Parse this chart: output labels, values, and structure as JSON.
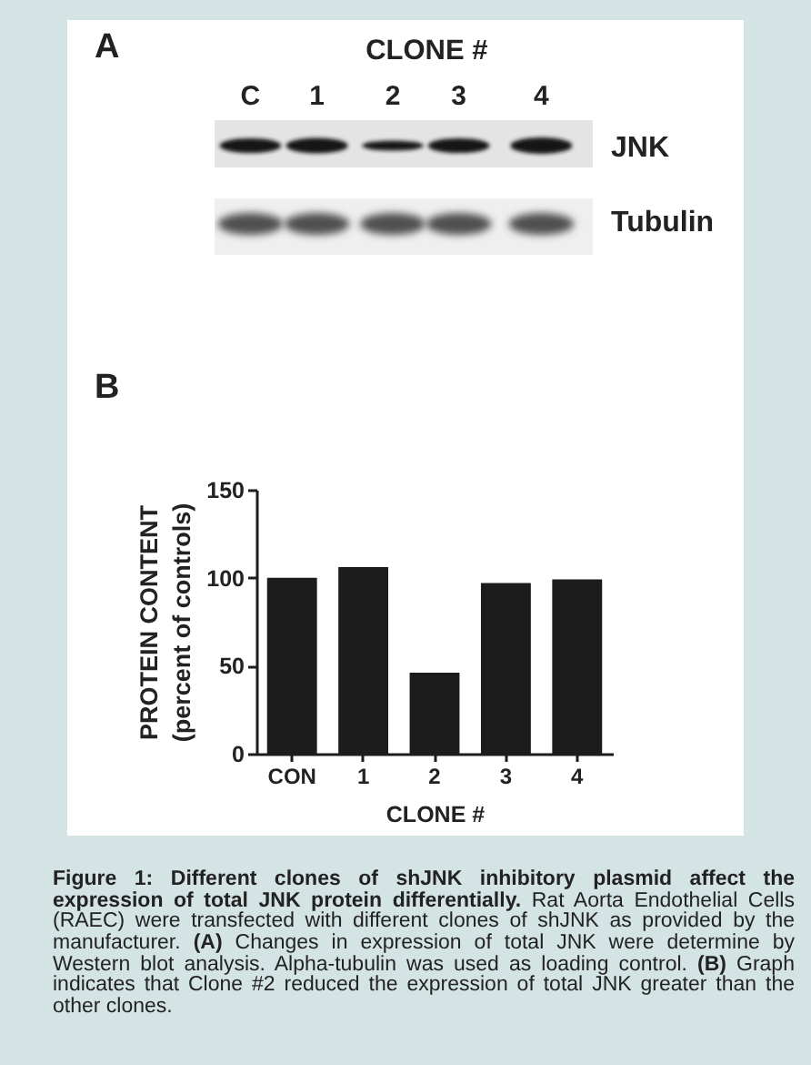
{
  "chart_data": {
    "type": "bar",
    "title": "B",
    "xlabel": "CLONE #",
    "ylabel": "PROTEIN CONTENT\n(percent of controls)",
    "categories": [
      "CON",
      "1",
      "2",
      "3",
      "4"
    ],
    "values": [
      100,
      106,
      46,
      97,
      99
    ],
    "color": "#1c1c1c",
    "ylim": [
      0,
      150
    ],
    "yticks": [
      0,
      50,
      100,
      150
    ],
    "annotations": [
      "A",
      "CLONE #",
      "C",
      "1",
      "2",
      "3",
      "4",
      "JNK",
      "Tubulin",
      "Figure 1: Different clones of shJNK inhibitory plasmid affect the",
      "expression of total JNK protein differentially.",
      "Rat Aorta Endothelial Cells",
      "(RAEC) were transfected with different clones of shJNK as provided by the",
      "manufacturer.",
      "(A)",
      "Changes in expression of total JNK were determine by",
      "Western blot analysis. Alpha-tubulin was used as loading control.",
      "(B)",
      "Graph",
      "indicates that Clone #2 reduced the expression of total JNK greater than the",
      "other clones."
    ]
  }
}
